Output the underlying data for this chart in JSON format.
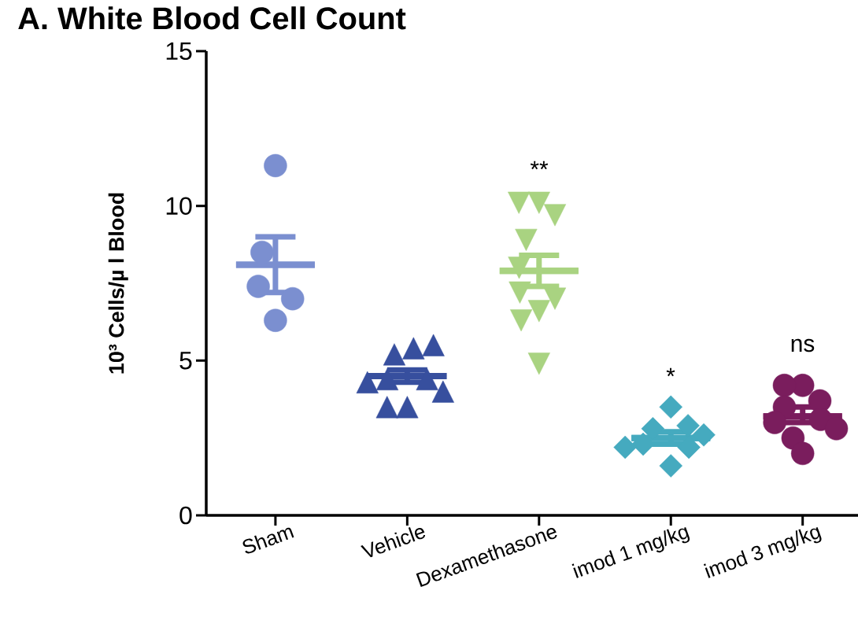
{
  "chart_data": {
    "type": "scatter",
    "title": "A. White Blood Cell Count",
    "ylabel": "10³ Cells/µ l Blood",
    "categories": [
      "Sham",
      "Vehicle",
      "Dexamethasone",
      "imod 1 mg/kg",
      "imod 3 mg/kg"
    ],
    "ylim": [
      0,
      15
    ],
    "yticks": [
      0,
      5,
      10,
      15
    ],
    "series": [
      {
        "type": "box",
        "colors": [
          "#7b8fd0",
          "#374f9e",
          "#a9d381",
          "#45aabf",
          "#7a1d5d"
        ],
        "boxes": [
          {
            "low": 7.2,
            "q1": 8.1,
            "median": 8.1,
            "q3": 8.1,
            "high": 9.0
          },
          {
            "low": 4.3,
            "q1": 4.5,
            "median": 4.5,
            "q3": 4.5,
            "high": 4.7
          },
          {
            "low": 7.4,
            "q1": 7.9,
            "median": 7.9,
            "q3": 7.9,
            "high": 8.4
          },
          {
            "low": 2.3,
            "q1": 2.5,
            "median": 2.5,
            "q3": 2.5,
            "high": 2.7
          },
          {
            "low": 3.0,
            "q1": 3.2,
            "median": 3.2,
            "q3": 3.2,
            "high": 3.5
          }
        ]
      },
      {
        "color": "#7b8fd0",
        "marker": "circle",
        "x": [
          "Sham",
          "Sham",
          "Sham",
          "Sham",
          "Sham"
        ],
        "values": [
          11.3,
          8.5,
          7.4,
          7.0,
          6.3
        ]
      },
      {
        "color": "#374f9e",
        "marker": "triangle",
        "x": [
          "Vehicle",
          "Vehicle",
          "Vehicle",
          "Vehicle",
          "Vehicle",
          "Vehicle",
          "Vehicle",
          "Vehicle",
          "Vehicle"
        ],
        "values": [
          5.2,
          5.4,
          5.5,
          4.4,
          4.4,
          4.3,
          4.0,
          3.5,
          3.5
        ]
      },
      {
        "color": "#a9d381",
        "marker": "triangle_down",
        "x": [
          "Dexamethasone",
          "Dexamethasone",
          "Dexamethasone",
          "Dexamethasone",
          "Dexamethasone",
          "Dexamethasone",
          "Dexamethasone",
          "Dexamethasone",
          "Dexamethasone",
          "Dexamethasone"
        ],
        "values": [
          10.1,
          10.1,
          9.7,
          8.9,
          8.0,
          7.2,
          7.0,
          6.6,
          6.3,
          4.9
        ]
      },
      {
        "color": "#45aabf",
        "marker": "diamond",
        "x": [
          "imod 1 mg/kg",
          "imod 1 mg/kg",
          "imod 1 mg/kg",
          "imod 1 mg/kg",
          "imod 1 mg/kg",
          "imod 1 mg/kg",
          "imod 1 mg/kg",
          "imod 1 mg/kg"
        ],
        "values": [
          3.5,
          2.8,
          2.9,
          2.6,
          2.3,
          2.2,
          2.2,
          1.6
        ]
      },
      {
        "color": "#7a1d5d",
        "marker": "circle",
        "x": [
          "imod 3 mg/kg",
          "imod 3 mg/kg",
          "imod 3 mg/kg",
          "imod 3 mg/kg",
          "imod 3 mg/kg",
          "imod 3 mg/kg",
          "imod 3 mg/kg",
          "imod 3 mg/kg",
          "imod 3 mg/kg"
        ],
        "values": [
          4.2,
          4.2,
          3.7,
          3.5,
          3.1,
          3.0,
          2.8,
          2.5,
          2.0
        ]
      }
    ],
    "annotations": [
      "**",
      "*",
      "ns"
    ]
  }
}
